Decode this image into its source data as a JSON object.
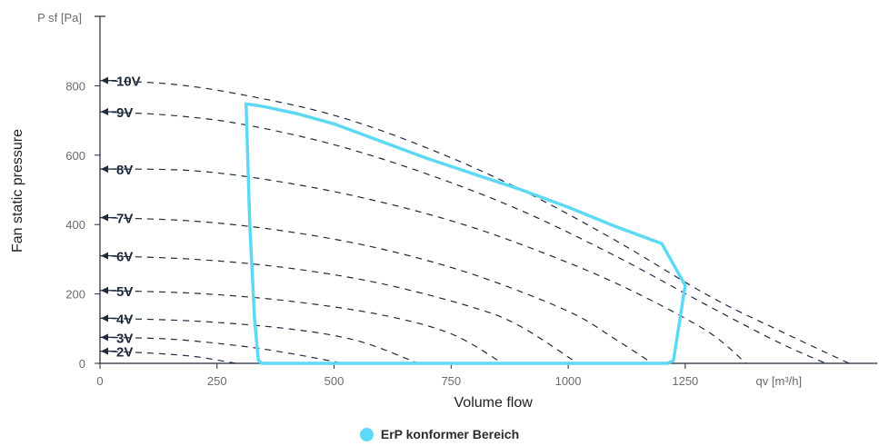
{
  "chart_data": {
    "type": "line",
    "ylabel": "Fan static pressure",
    "xlabel": "Volume flow",
    "y_unit": "P sf [Pa]",
    "x_unit": "qv [m³/h]",
    "xlim": [
      0,
      1660
    ],
    "ylim": [
      0,
      1000
    ],
    "x_ticks": [
      0,
      250,
      500,
      750,
      1000,
      1250
    ],
    "y_ticks": [
      0,
      200,
      400,
      600,
      800
    ],
    "grid": false,
    "series": [
      {
        "name": "10V",
        "points": [
          [
            0,
            815
          ],
          [
            150,
            805
          ],
          [
            300,
            775
          ],
          [
            500,
            715
          ],
          [
            700,
            620
          ],
          [
            900,
            500
          ],
          [
            1100,
            355
          ],
          [
            1300,
            195
          ],
          [
            1450,
            95
          ],
          [
            1600,
            0
          ]
        ]
      },
      {
        "name": "9V",
        "points": [
          [
            0,
            725
          ],
          [
            150,
            715
          ],
          [
            300,
            690
          ],
          [
            500,
            630
          ],
          [
            700,
            545
          ],
          [
            900,
            440
          ],
          [
            1100,
            310
          ],
          [
            1300,
            165
          ],
          [
            1450,
            60
          ],
          [
            1550,
            0
          ]
        ]
      },
      {
        "name": "8V",
        "points": [
          [
            0,
            560
          ],
          [
            200,
            555
          ],
          [
            400,
            520
          ],
          [
            600,
            465
          ],
          [
            800,
            390
          ],
          [
            1000,
            290
          ],
          [
            1150,
            200
          ],
          [
            1300,
            90
          ],
          [
            1380,
            0
          ]
        ]
      },
      {
        "name": "7V",
        "points": [
          [
            0,
            420
          ],
          [
            200,
            410
          ],
          [
            400,
            380
          ],
          [
            600,
            330
          ],
          [
            800,
            255
          ],
          [
            1000,
            150
          ],
          [
            1100,
            70
          ],
          [
            1180,
            0
          ]
        ]
      },
      {
        "name": "6V",
        "points": [
          [
            0,
            310
          ],
          [
            200,
            300
          ],
          [
            400,
            275
          ],
          [
            600,
            230
          ],
          [
            800,
            160
          ],
          [
            900,
            105
          ],
          [
            1020,
            0
          ]
        ]
      },
      {
        "name": "5V",
        "points": [
          [
            0,
            210
          ],
          [
            200,
            202
          ],
          [
            400,
            180
          ],
          [
            600,
            140
          ],
          [
            750,
            85
          ],
          [
            860,
            0
          ]
        ]
      },
      {
        "name": "4V",
        "points": [
          [
            0,
            130
          ],
          [
            200,
            122
          ],
          [
            400,
            100
          ],
          [
            550,
            65
          ],
          [
            680,
            0
          ]
        ]
      },
      {
        "name": "3V",
        "points": [
          [
            0,
            75
          ],
          [
            150,
            70
          ],
          [
            300,
            50
          ],
          [
            400,
            30
          ],
          [
            520,
            0
          ]
        ]
      },
      {
        "name": "2V",
        "points": [
          [
            0,
            35
          ],
          [
            100,
            30
          ],
          [
            200,
            20
          ],
          [
            290,
            0
          ]
        ]
      }
    ],
    "erp_area": {
      "name": "ErP konformer Bereich",
      "color": "#5dd8f5",
      "polygon": [
        [
          312,
          748
        ],
        [
          350,
          740
        ],
        [
          420,
          720
        ],
        [
          500,
          690
        ],
        [
          600,
          640
        ],
        [
          700,
          590
        ],
        [
          800,
          545
        ],
        [
          900,
          500
        ],
        [
          1000,
          450
        ],
        [
          1100,
          395
        ],
        [
          1200,
          345
        ],
        [
          1250,
          225
        ],
        [
          1225,
          8
        ],
        [
          1212,
          0
        ],
        [
          345,
          0
        ],
        [
          338,
          10
        ],
        [
          330,
          130
        ],
        [
          320,
          400
        ],
        [
          312,
          748
        ]
      ]
    }
  },
  "legend": {
    "label": "ErP konformer Bereich",
    "color": "#5dd8f5"
  }
}
